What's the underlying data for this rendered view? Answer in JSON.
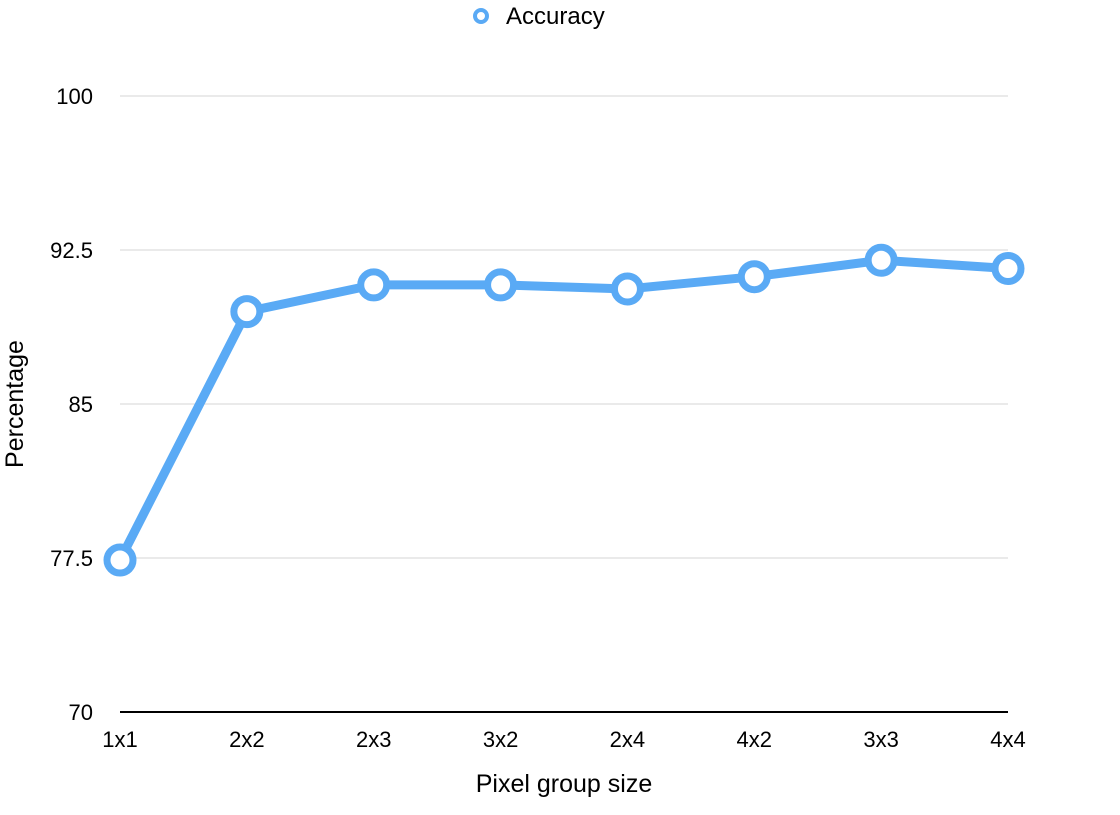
{
  "chart_data": {
    "type": "line",
    "categories": [
      "1x1",
      "2x2",
      "2x3",
      "3x2",
      "2x4",
      "4x2",
      "3x3",
      "4x4"
    ],
    "series": [
      {
        "name": "Accuracy",
        "values": [
          77.4,
          89.5,
          90.8,
          90.8,
          90.6,
          91.2,
          92.0,
          91.6
        ]
      }
    ],
    "xlabel": "Pixel group size",
    "ylabel": "Percentage",
    "ylim": [
      70,
      100
    ],
    "yticks": [
      {
        "value": 70,
        "label": "70"
      },
      {
        "value": 77.5,
        "label": "77.5"
      },
      {
        "value": 85,
        "label": "85"
      },
      {
        "value": 92.5,
        "label": "92.5"
      },
      {
        "value": 100,
        "label": "100"
      }
    ],
    "grid": "horizontal",
    "legend_position": "top-center",
    "colors": {
      "series": "#5aaaf5",
      "marker_fill": "#ffffff",
      "grid": "#d6d6d6",
      "axis": "#000000"
    }
  }
}
